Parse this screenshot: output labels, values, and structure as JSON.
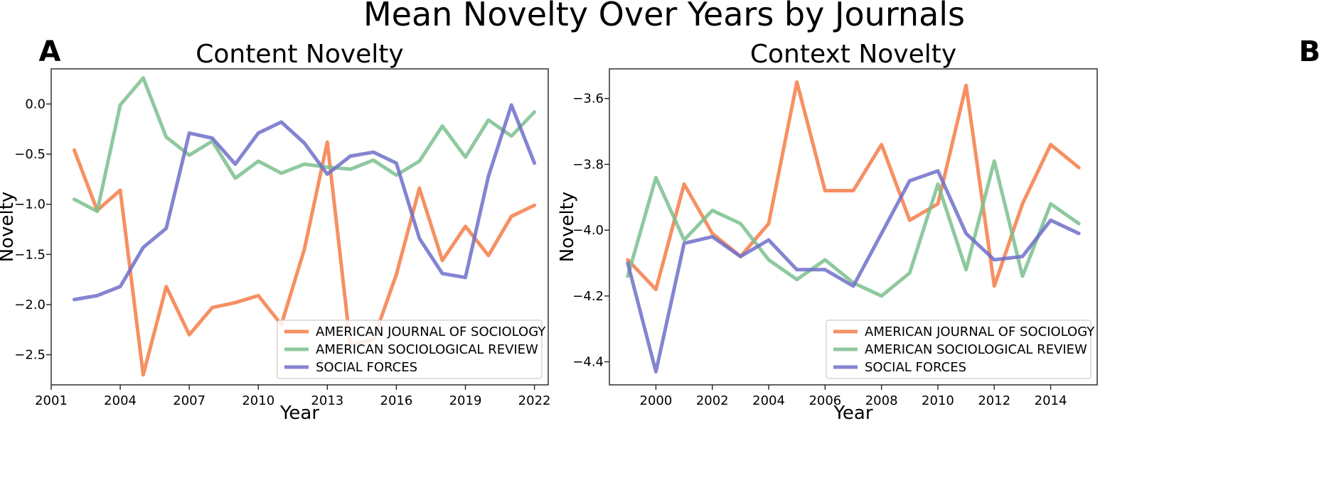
{
  "suptitle": "Mean Novelty Over Years by Journals",
  "chart_data": [
    {
      "type": "line",
      "panel_label": "A",
      "title": "Content Novelty",
      "xlabel": "Year",
      "ylabel": "Novelty",
      "xlim": [
        2001,
        2022.6
      ],
      "ylim": [
        -2.8,
        0.35
      ],
      "xticks": [
        2001,
        2004,
        2007,
        2010,
        2013,
        2016,
        2019,
        2022
      ],
      "yticks": [
        0.0,
        -0.5,
        -1.0,
        -1.5,
        -2.0,
        -2.5
      ],
      "ytick_labels": [
        "0.0",
        "−0.5",
        "−1.0",
        "−1.5",
        "−2.0",
        "−2.5"
      ],
      "legend_position": "lower right",
      "x": [
        2002,
        2003,
        2004,
        2005,
        2006,
        2007,
        2008,
        2009,
        2010,
        2011,
        2012,
        2013,
        2014,
        2015,
        2016,
        2017,
        2018,
        2019,
        2020,
        2021,
        2022
      ],
      "series": [
        {
          "name": "AMERICAN JOURNAL OF SOCIOLOGY",
          "color": "#f47c48",
          "values": [
            -0.46,
            -1.06,
            -0.86,
            -2.7,
            -1.82,
            -2.3,
            -2.03,
            -1.98,
            -1.91,
            -2.2,
            -1.45,
            -0.38,
            -2.4,
            -2.35,
            -1.7,
            -0.84,
            -1.56,
            -1.22,
            -1.51,
            -1.12,
            -1.01
          ]
        },
        {
          "name": "AMERICAN SOCIOLOGICAL REVIEW",
          "color": "#7bbf8e",
          "values": [
            -0.95,
            -1.07,
            -0.01,
            0.26,
            -0.33,
            -0.51,
            -0.37,
            -0.74,
            -0.57,
            -0.69,
            -0.6,
            -0.63,
            -0.65,
            -0.56,
            -0.71,
            -0.57,
            -0.22,
            -0.53,
            -0.16,
            -0.32,
            -0.08
          ]
        },
        {
          "name": "SOCIAL FORCES",
          "color": "#6f6fc9",
          "values": [
            -1.95,
            -1.91,
            -1.82,
            -1.43,
            -1.24,
            -0.29,
            -0.34,
            -0.6,
            -0.29,
            -0.18,
            -0.39,
            -0.7,
            -0.52,
            -0.48,
            -0.59,
            -1.34,
            -1.69,
            -1.73,
            -0.72,
            -0.01,
            -0.59
          ]
        }
      ]
    },
    {
      "type": "line",
      "panel_label": "B",
      "title": "Context Novelty",
      "xlabel": "Year",
      "ylabel": "Novelty",
      "xlim": [
        1998.35,
        2015.65
      ],
      "ylim": [
        -4.47,
        -3.51
      ],
      "xticks": [
        2000,
        2002,
        2004,
        2006,
        2008,
        2010,
        2012,
        2014
      ],
      "yticks": [
        -3.6,
        -3.8,
        -4.0,
        -4.2,
        -4.4
      ],
      "ytick_labels": [
        "−3.6",
        "−3.8",
        "−4.0",
        "−4.2",
        "−4.4"
      ],
      "legend_position": "lower right",
      "x": [
        1999,
        2000,
        2001,
        2002,
        2003,
        2004,
        2005,
        2006,
        2007,
        2008,
        2009,
        2010,
        2011,
        2012,
        2013,
        2014,
        2015
      ],
      "series": [
        {
          "name": "AMERICAN JOURNAL OF SOCIOLOGY",
          "color": "#f47c48",
          "values": [
            -4.09,
            -4.18,
            -3.86,
            -4.01,
            -4.08,
            -3.98,
            -3.55,
            -3.88,
            -3.88,
            -3.74,
            -3.97,
            -3.92,
            -3.56,
            -4.17,
            -3.92,
            -3.74,
            -3.81
          ]
        },
        {
          "name": "AMERICAN SOCIOLOGICAL REVIEW",
          "color": "#7bbf8e",
          "values": [
            -4.14,
            -3.84,
            -4.03,
            -3.94,
            -3.98,
            -4.09,
            -4.15,
            -4.09,
            -4.16,
            -4.2,
            -4.13,
            -3.86,
            -4.12,
            -3.79,
            -4.14,
            -3.92,
            -3.98
          ]
        },
        {
          "name": "SOCIAL FORCES",
          "color": "#6f6fc9",
          "values": [
            -4.1,
            -4.43,
            -4.04,
            -4.02,
            -4.08,
            -4.03,
            -4.12,
            -4.12,
            -4.17,
            -4.01,
            -3.85,
            -3.82,
            -4.01,
            -4.09,
            -4.08,
            -3.97,
            -4.01
          ]
        }
      ]
    }
  ]
}
